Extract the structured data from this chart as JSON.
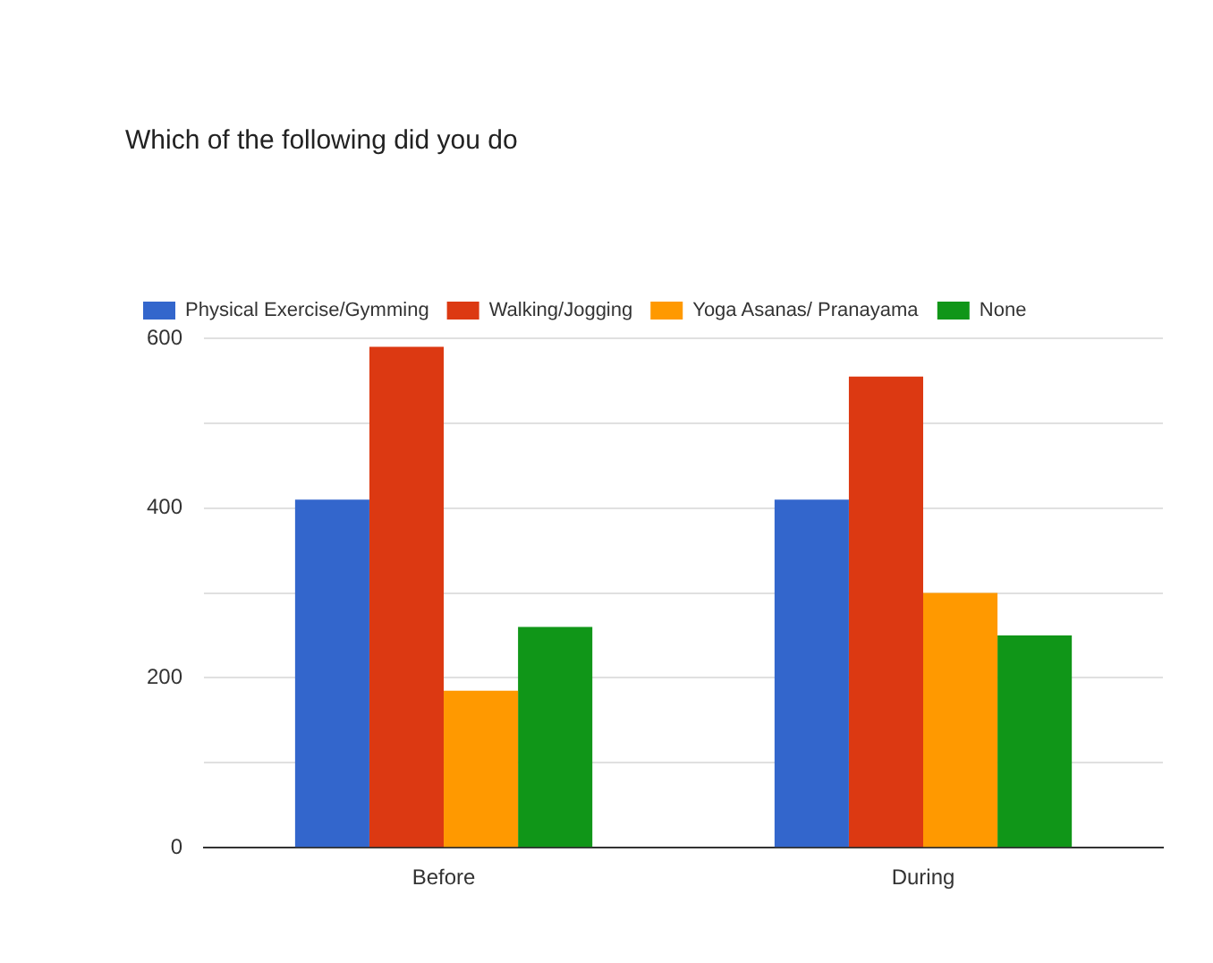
{
  "chart_data": {
    "type": "bar",
    "title": "Which of the following did you do",
    "categories": [
      "Before",
      "During"
    ],
    "series": [
      {
        "name": "Physical Exercise/Gymming",
        "color": "#3366cc",
        "values": [
          410,
          410
        ]
      },
      {
        "name": "Walking/Jogging",
        "color": "#dc3912",
        "values": [
          590,
          555
        ]
      },
      {
        "name": "Yoga Asanas/ Pranayama",
        "color": "#ff9900",
        "values": [
          185,
          300
        ]
      },
      {
        "name": "None",
        "color": "#109618",
        "values": [
          260,
          250
        ]
      }
    ],
    "ylim": [
      0,
      600
    ],
    "yticks": [
      0,
      {
        "value": 100,
        "label": null
      },
      200,
      {
        "value": 300,
        "label": null
      },
      400,
      {
        "value": 500,
        "label": null
      },
      600
    ],
    "grid": "y",
    "legend": "top left"
  }
}
